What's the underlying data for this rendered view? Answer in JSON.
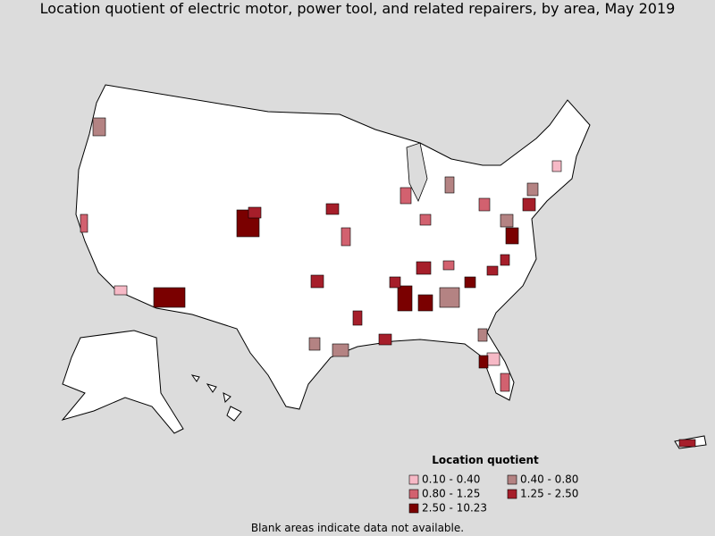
{
  "title": "Location quotient of electric motor, power tool, and related repairers, by area, May 2019",
  "legend": {
    "title": "Location quotient",
    "items": [
      {
        "label": "0.10 - 0.40",
        "color": "#f6b9c6"
      },
      {
        "label": "0.40 - 0.80",
        "color": "#b48383"
      },
      {
        "label": "0.80 - 1.25",
        "color": "#d2616f"
      },
      {
        "label": "1.25 - 2.50",
        "color": "#a61e2a"
      },
      {
        "label": "2.50 - 10.23",
        "color": "#7a0000"
      }
    ]
  },
  "footnote": "Blank areas indicate data not available."
}
